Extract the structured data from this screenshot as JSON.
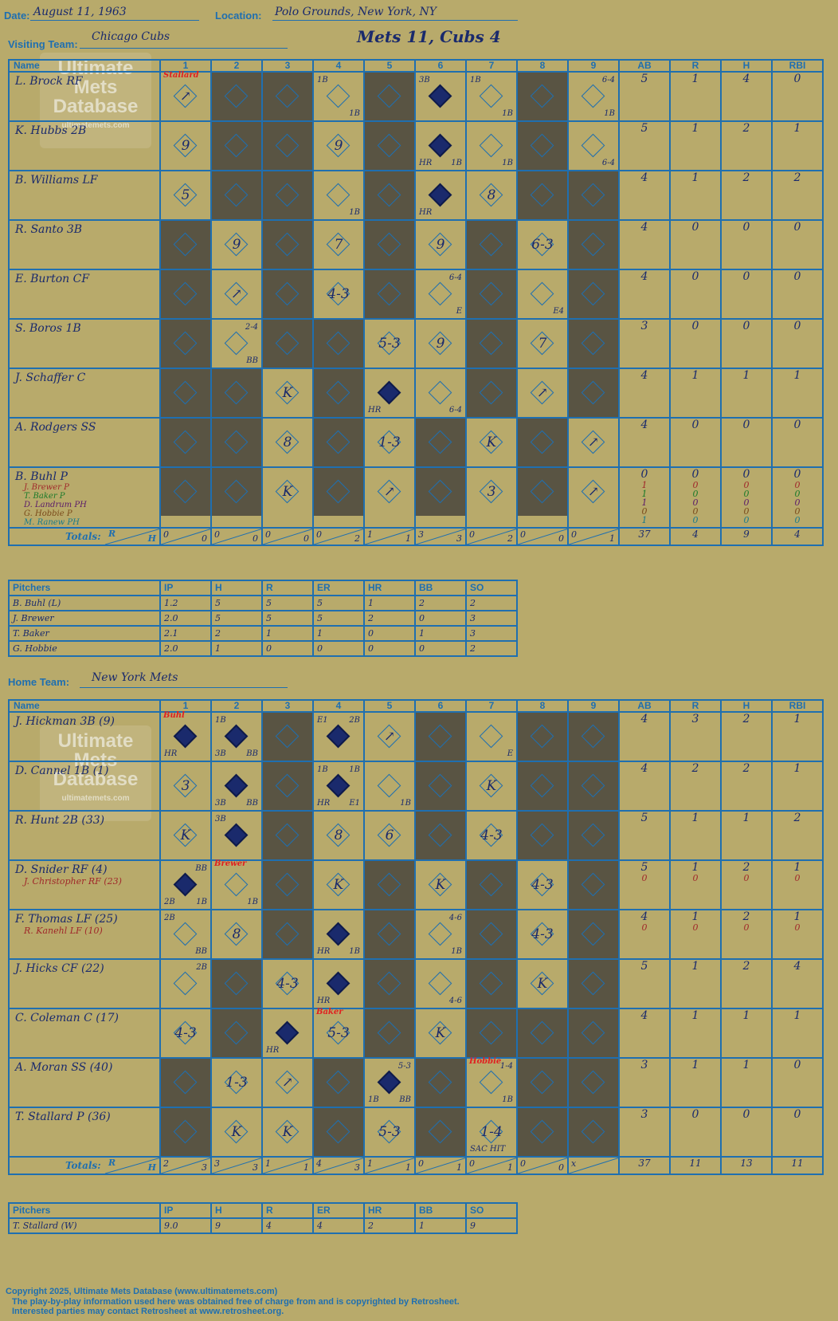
{
  "header": {
    "date_label": "Date:",
    "date": "August 11, 1963",
    "location_label": "Location:",
    "location": "Polo Grounds, New York, NY",
    "visiting_label": "Visiting Team:",
    "visiting_team": "Chicago Cubs",
    "score_title": "Mets 11, Cubs 4",
    "home_label": "Home Team:",
    "home_team": "New York Mets"
  },
  "watermark": {
    "line1": "Ultimate",
    "line2": "Mets",
    "line3": "Database",
    "url": "ultimatemets.com"
  },
  "columns": {
    "name": "Name",
    "innings": [
      "1",
      "2",
      "3",
      "4",
      "5",
      "6",
      "7",
      "8",
      "9"
    ],
    "stats": [
      "AB",
      "R",
      "H",
      "RBI"
    ],
    "totals": "Totals:",
    "r": "R",
    "h": "H"
  },
  "visitors": {
    "batters": [
      {
        "name": "L. Brock RF",
        "stats": [
          "5",
          "1",
          "4",
          "0"
        ],
        "cells": [
          {
            "pch": "Stallard",
            "res": "↗"
          },
          {
            "dark": true
          },
          {
            "dark": true
          },
          {
            "tl": "1B",
            "br": "1B"
          },
          {
            "dark": true
          },
          {
            "tl": "3B",
            "run": true
          },
          {
            "tl": "1B",
            "br": "1B"
          },
          {
            "dark": true
          },
          {
            "tr": "6-4",
            "br": "1B"
          }
        ]
      },
      {
        "name": "K. Hubbs 2B",
        "stats": [
          "5",
          "1",
          "2",
          "1"
        ],
        "cells": [
          {
            "res": "9"
          },
          {
            "dark": true
          },
          {
            "dark": true
          },
          {
            "res": "9"
          },
          {
            "dark": true
          },
          {
            "run": true,
            "bl": "HR",
            "br": "1B"
          },
          {
            "br": "1B"
          },
          {
            "dark": true
          },
          {
            "br": "6-4"
          }
        ]
      },
      {
        "name": "B. Williams LF",
        "stats": [
          "4",
          "1",
          "2",
          "2"
        ],
        "cells": [
          {
            "res": "5"
          },
          {
            "dark": true
          },
          {
            "dark": true
          },
          {
            "br": "1B"
          },
          {
            "dark": true
          },
          {
            "run": true,
            "bl": "HR"
          },
          {
            "res": "8"
          },
          {
            "dark": true
          },
          {
            "dark": true
          }
        ]
      },
      {
        "name": "R. Santo 3B",
        "stats": [
          "4",
          "0",
          "0",
          "0"
        ],
        "cells": [
          {
            "dark": true
          },
          {
            "res": "9"
          },
          {
            "dark": true
          },
          {
            "res": "7"
          },
          {
            "dark": true
          },
          {
            "res": "9"
          },
          {
            "dark": true
          },
          {
            "res": "6-3"
          },
          {
            "dark": true
          }
        ]
      },
      {
        "name": "E. Burton CF",
        "stats": [
          "4",
          "0",
          "0",
          "0"
        ],
        "cells": [
          {
            "dark": true
          },
          {
            "res": "↗"
          },
          {
            "dark": true
          },
          {
            "res": "4-3"
          },
          {
            "dark": true
          },
          {
            "tr": "6-4",
            "br": "E"
          },
          {
            "dark": true
          },
          {
            "br": "E4"
          },
          {
            "dark": true
          }
        ]
      },
      {
        "name": "S. Boros 1B",
        "stats": [
          "3",
          "0",
          "0",
          "0"
        ],
        "cells": [
          {
            "dark": true
          },
          {
            "tr": "2-4",
            "br": "BB"
          },
          {
            "dark": true
          },
          {
            "dark": true
          },
          {
            "res": "5-3"
          },
          {
            "res": "9"
          },
          {
            "dark": true
          },
          {
            "res": "7"
          },
          {
            "dark": true
          }
        ]
      },
      {
        "name": "J. Schaffer C",
        "stats": [
          "4",
          "1",
          "1",
          "1"
        ],
        "cells": [
          {
            "dark": true
          },
          {
            "dark": true
          },
          {
            "res": "K"
          },
          {
            "dark": true
          },
          {
            "run": true,
            "bl": "HR"
          },
          {
            "br": "6-4"
          },
          {
            "dark": true
          },
          {
            "res": "↗"
          },
          {
            "dark": true
          }
        ]
      },
      {
        "name": "A. Rodgers SS",
        "stats": [
          "4",
          "0",
          "0",
          "0"
        ],
        "cells": [
          {
            "dark": true
          },
          {
            "dark": true
          },
          {
            "res": "8"
          },
          {
            "dark": true
          },
          {
            "res": "1-3"
          },
          {
            "dark": true
          },
          {
            "res": "K"
          },
          {
            "dark": true
          },
          {
            "res": "↗"
          }
        ]
      },
      {
        "name": "B. Buhl P",
        "stats": [
          "0",
          "0",
          "0",
          "0"
        ],
        "subs": [
          {
            "name": "J. Brewer P",
            "stats": [
              "1",
              "0",
              "0",
              "0"
            ]
          },
          {
            "name": "T. Baker P",
            "stats": [
              "1",
              "0",
              "0",
              "0"
            ]
          },
          {
            "name": "D. Landrum PH",
            "stats": [
              "1",
              "0",
              "0",
              "0"
            ]
          },
          {
            "name": "G. Hobbie P",
            "stats": [
              "0",
              "0",
              "0",
              "0"
            ]
          },
          {
            "name": "M. Ranew PH",
            "stats": [
              "1",
              "0",
              "0",
              "0"
            ]
          }
        ],
        "cells": [
          {
            "dark": true
          },
          {
            "dark": true
          },
          {
            "res": "K"
          },
          {
            "dark": true
          },
          {
            "res": "↗"
          },
          {
            "dark": true
          },
          {
            "res": "3"
          },
          {
            "dark": true
          },
          {
            "res": "↗"
          }
        ]
      }
    ],
    "totals": [
      [
        "0",
        "0"
      ],
      [
        "0",
        "0"
      ],
      [
        "0",
        "0"
      ],
      [
        "0",
        "2"
      ],
      [
        "1",
        "1"
      ],
      [
        "3",
        "3"
      ],
      [
        "0",
        "2"
      ],
      [
        "0",
        "0"
      ],
      [
        "0",
        "1"
      ]
    ],
    "stat_totals": [
      "37",
      "4",
      "9",
      "4"
    ],
    "pitchers": [
      {
        "name": "B. Buhl (L)",
        "stats": [
          "1.2",
          "5",
          "5",
          "5",
          "1",
          "2",
          "2"
        ]
      },
      {
        "name": "J. Brewer",
        "stats": [
          "2.0",
          "5",
          "5",
          "5",
          "2",
          "0",
          "3"
        ]
      },
      {
        "name": "T. Baker",
        "stats": [
          "2.1",
          "2",
          "1",
          "1",
          "0",
          "1",
          "3"
        ]
      },
      {
        "name": "G. Hobbie",
        "stats": [
          "2.0",
          "1",
          "0",
          "0",
          "0",
          "0",
          "2"
        ]
      }
    ]
  },
  "home": {
    "batters": [
      {
        "name": "J. Hickman 3B (9)",
        "stats": [
          "4",
          "3",
          "2",
          "1"
        ],
        "cells": [
          {
            "pch": "Buhl",
            "run": true,
            "bl": "HR"
          },
          {
            "tl": "1B",
            "run": true,
            "bl": "3B",
            "br": "BB"
          },
          {
            "dark": true
          },
          {
            "tl": "E1",
            "tr": "2B",
            "run": true
          },
          {
            "res": "↗"
          },
          {
            "dark": true
          },
          {
            "br": "E"
          },
          {
            "dark": true
          },
          {
            "dark": true
          }
        ]
      },
      {
        "name": "D. Cannel 1B (1)",
        "stats": [
          "4",
          "2",
          "2",
          "1"
        ],
        "cells": [
          {
            "res": "3"
          },
          {
            "run": true,
            "bl": "3B",
            "br": "BB"
          },
          {
            "dark": true
          },
          {
            "tl": "1B",
            "tr": "1B",
            "run": true,
            "bl": "HR",
            "br": "E1"
          },
          {
            "br": "1B"
          },
          {
            "dark": true
          },
          {
            "res": "K"
          },
          {
            "dark": true
          },
          {
            "dark": true
          }
        ]
      },
      {
        "name": "R. Hunt 2B (33)",
        "stats": [
          "5",
          "1",
          "1",
          "2"
        ],
        "cells": [
          {
            "res": "K"
          },
          {
            "tl": "3B",
            "run": true
          },
          {
            "dark": true
          },
          {
            "res": "8"
          },
          {
            "res": "6"
          },
          {
            "dark": true
          },
          {
            "res": "4-3"
          },
          {
            "dark": true
          },
          {
            "dark": true
          }
        ]
      },
      {
        "name": "D. Snider RF (4)",
        "sub": "J. Christopher RF (23)",
        "stats": [
          "5",
          "1",
          "2",
          "1"
        ],
        "sub_stats": [
          "0",
          "0",
          "0",
          "0"
        ],
        "cells": [
          {
            "tr": "BB",
            "run": true,
            "bl": "2B",
            "br": "1B"
          },
          {
            "pch": "Brewer",
            "br": "1B"
          },
          {
            "dark": true
          },
          {
            "res": "K"
          },
          {
            "dark": true
          },
          {
            "res": "K"
          },
          {
            "dark": true
          },
          {
            "res": "4-3"
          },
          {
            "dark": true
          }
        ]
      },
      {
        "name": "F. Thomas LF (25)",
        "sub": "R. Kanehl LF (10)",
        "stats": [
          "4",
          "1",
          "2",
          "1"
        ],
        "sub_stats": [
          "0",
          "0",
          "0",
          "0"
        ],
        "cells": [
          {
            "tl": "2B",
            "br": "BB"
          },
          {
            "res": "8"
          },
          {
            "dark": true
          },
          {
            "run": true,
            "bl": "HR",
            "br": "1B"
          },
          {
            "dark": true
          },
          {
            "tr": "4-6",
            "br": "1B"
          },
          {
            "dark": true
          },
          {
            "res": "4-3"
          },
          {
            "dark": true
          }
        ]
      },
      {
        "name": "J. Hicks CF (22)",
        "stats": [
          "5",
          "1",
          "2",
          "4"
        ],
        "cells": [
          {
            "tr": "2B"
          },
          {
            "dark": true
          },
          {
            "res": "4-3"
          },
          {
            "run": true,
            "bl": "HR"
          },
          {
            "dark": true
          },
          {
            "br": "4-6"
          },
          {
            "dark": true
          },
          {
            "res": "K"
          },
          {
            "dark": true
          }
        ]
      },
      {
        "name": "C. Coleman C (17)",
        "stats": [
          "4",
          "1",
          "1",
          "1"
        ],
        "cells": [
          {
            "res": "4-3"
          },
          {
            "dark": true
          },
          {
            "run": true,
            "bl": "HR"
          },
          {
            "pch": "Baker",
            "res": "5-3"
          },
          {
            "dark": true
          },
          {
            "res": "K"
          },
          {
            "dark": true
          },
          {
            "dark": true
          },
          {
            "dark": true
          }
        ]
      },
      {
        "name": "A. Moran SS (40)",
        "stats": [
          "3",
          "1",
          "1",
          "0"
        ],
        "cells": [
          {
            "dark": true
          },
          {
            "res": "1-3"
          },
          {
            "res": "↗"
          },
          {
            "dark": true
          },
          {
            "tr": "5-3",
            "run": true,
            "bl": "1B",
            "br": "BB"
          },
          {
            "dark": true
          },
          {
            "pch": "Hobbie",
            "tr": "1-4",
            "br": "1B"
          },
          {
            "dark": true
          },
          {
            "dark": true
          }
        ]
      },
      {
        "name": "T. Stallard P (36)",
        "stats": [
          "3",
          "0",
          "0",
          "0"
        ],
        "cells": [
          {
            "dark": true
          },
          {
            "res": "K"
          },
          {
            "res": "K"
          },
          {
            "dark": true
          },
          {
            "res": "5-3"
          },
          {
            "dark": true
          },
          {
            "res": "1-4",
            "bl": "SAC HIT"
          },
          {
            "dark": true
          },
          {
            "dark": true
          }
        ]
      }
    ],
    "totals": [
      [
        "2",
        "3"
      ],
      [
        "3",
        "3"
      ],
      [
        "1",
        "1"
      ],
      [
        "4",
        "3"
      ],
      [
        "1",
        "1"
      ],
      [
        "0",
        "1"
      ],
      [
        "0",
        "1"
      ],
      [
        "0",
        "0"
      ],
      [
        "x",
        ""
      ]
    ],
    "stat_totals": [
      "37",
      "11",
      "13",
      "11"
    ],
    "pitchers": [
      {
        "name": "T. Stallard (W)",
        "stats": [
          "9.0",
          "9",
          "4",
          "4",
          "2",
          "1",
          "9"
        ]
      }
    ]
  },
  "pitcher_columns": {
    "name": "Pitchers",
    "cols": [
      "IP",
      "H",
      "R",
      "ER",
      "HR",
      "BB",
      "SO"
    ]
  },
  "footer": {
    "line1": "Copyright 2025, Ultimate Mets Database (www.ultimatemets.com)",
    "line2": "The play-by-play information used here was obtained free of charge from and is copyrighted by Retrosheet.",
    "line3": "Interested parties may contact Retrosheet at www.retrosheet.org."
  },
  "colors": {
    "background": "#b8aa6b",
    "grid": "#1f6fb0",
    "ink": "#1a2a6c",
    "dark_cell": "#595443",
    "pitcher_change": "#e02020"
  }
}
